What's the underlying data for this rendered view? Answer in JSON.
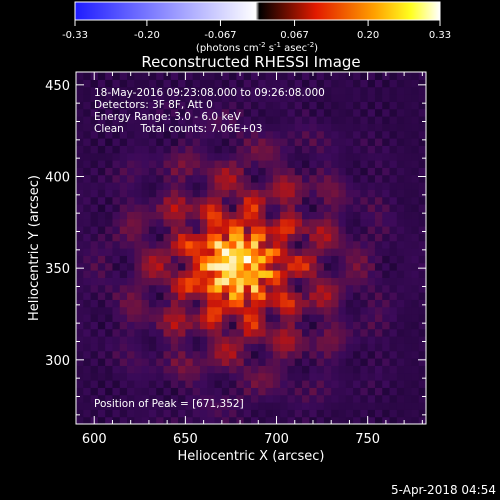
{
  "chart_data": {
    "type": "heatmap",
    "title": "Reconstructed RHESSI Image",
    "xlabel": "Heliocentric X (arcsec)",
    "ylabel": "Heliocentric Y (arcsec)",
    "xlim": [
      590,
      782
    ],
    "ylim": [
      265,
      457
    ],
    "x_ticks": [
      600,
      650,
      700,
      750
    ],
    "y_ticks": [
      300,
      350,
      400,
      450
    ],
    "colorbar": {
      "range": [
        -0.33,
        0.33
      ],
      "ticks": [
        "-0.33",
        "-0.20",
        "-0.067",
        "0.067",
        "0.20",
        "0.33"
      ],
      "units_prefix": "(photons cm",
      "units_sup1": "-2",
      "units_mid": " s",
      "units_sup2": "-1",
      "units_mid2": " asec",
      "units_sup3": "-2",
      "units_suffix": ")",
      "colors": [
        "#1e1cff",
        "#ffffff",
        "#e21a00",
        "#ffa000",
        "#ffff00",
        "#ffffff"
      ]
    },
    "peak": [
      671,
      352
    ],
    "info_lines": [
      "18-May-2016 09:23:08.000 to 09:26:08.000",
      "Detectors: 3F 8F, Att 0",
      "Energy Range: 3.0 - 6.0 keV",
      "Clean     Total counts: 7.06E+03"
    ],
    "peak_label": "Position of Peak = [671,352]"
  },
  "footer": {
    "date": "5-Apr-2018 04:54"
  }
}
